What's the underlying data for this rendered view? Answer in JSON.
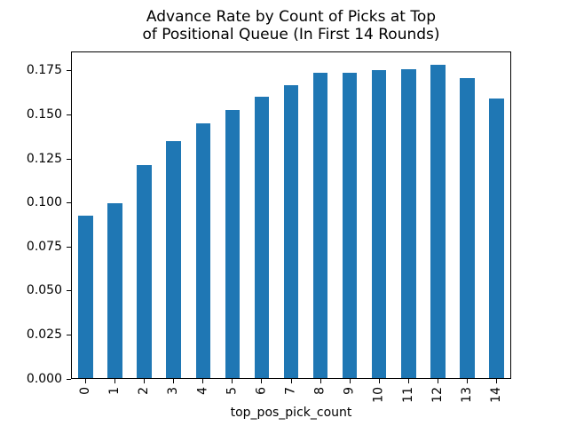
{
  "figure": {
    "background": "#ffffff",
    "title": "Advance Rate by Count of Picks at Top\nof Positional Queue (In First 14 Rounds)"
  },
  "chart_data": {
    "type": "bar",
    "title": "Advance Rate by Count of Picks at Top of Positional Queue (In First 14 Rounds)",
    "categories": [
      "0",
      "1",
      "2",
      "3",
      "4",
      "5",
      "6",
      "7",
      "8",
      "9",
      "10",
      "11",
      "12",
      "13",
      "14"
    ],
    "values": [
      0.0921,
      0.0992,
      0.1212,
      0.1348,
      0.1447,
      0.1521,
      0.16,
      0.1661,
      0.1736,
      0.1736,
      0.1747,
      0.1755,
      0.1779,
      0.1705,
      0.159
    ],
    "xlabel": "top_pos_pick_count",
    "ylabel": "",
    "ylim": [
      0,
      0.186
    ],
    "yticks": [
      0,
      0.025,
      0.05,
      0.075,
      0.1,
      0.125,
      0.15,
      0.175
    ],
    "ytick_labels": [
      "0.000",
      "0.025",
      "0.050",
      "0.075",
      "0.100",
      "0.125",
      "0.150",
      "0.175"
    ],
    "xtick_rotation_deg": 90,
    "bar_color": "#1f77b4",
    "axis_color": "#000000",
    "bar_width_fraction": 0.5,
    "grid": false,
    "legend": null
  }
}
